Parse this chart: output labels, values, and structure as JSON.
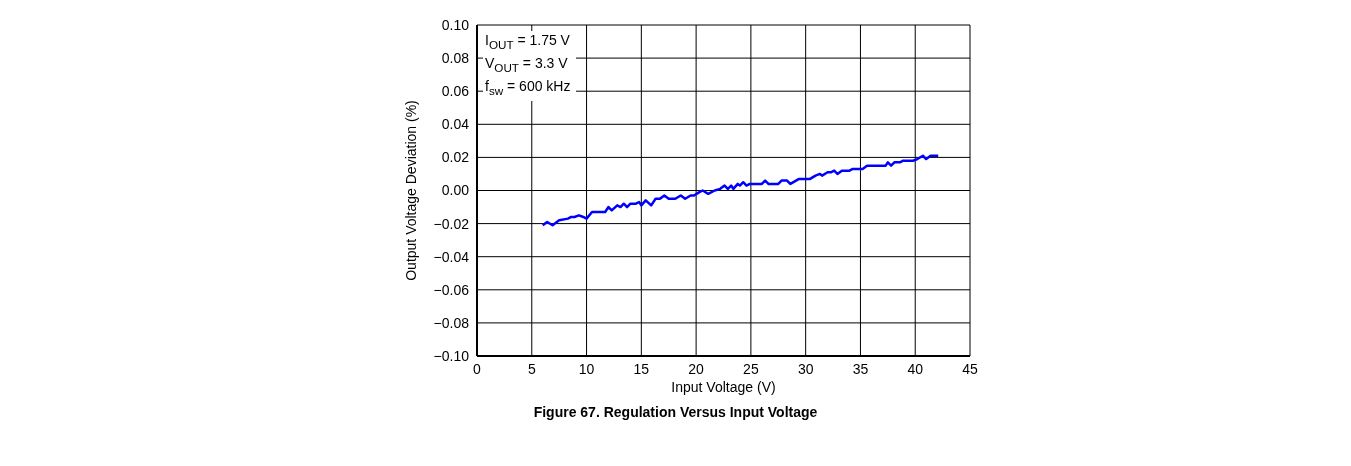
{
  "chart_data": {
    "type": "line",
    "title": "Figure 67. Regulation Versus Input Voltage",
    "xlabel": "Input Voltage (V)",
    "ylabel": "Output Voltage Deviation (%)",
    "annotations": [
      "I$_{OUT}$ = 1.75 V",
      "V$_{OUT}$ = 3.3 V",
      "f$_{sw}$ = 600 kHz"
    ],
    "xlim": [
      0,
      45
    ],
    "xticks": [
      0,
      5,
      10,
      15,
      20,
      25,
      30,
      35,
      40,
      45
    ],
    "ylim": [
      -0.1,
      0.1
    ],
    "yticks": [
      {
        "value": -0.1,
        "label": "−0.10"
      },
      {
        "value": -0.08,
        "label": "−0.08"
      },
      {
        "value": -0.06,
        "label": "−0.06"
      },
      {
        "value": -0.04,
        "label": "−0.04"
      },
      {
        "value": -0.02,
        "label": "−0.02"
      },
      {
        "value": 0,
        "label": "0.00"
      },
      {
        "value": 0.02,
        "label": "0.02"
      },
      {
        "value": 0.04,
        "label": "0.04"
      },
      {
        "value": 0.06,
        "label": "0.06"
      },
      {
        "value": 0.08,
        "label": "0.08"
      },
      {
        "value": 0.1,
        "label": "0.10"
      }
    ],
    "grid": true,
    "marker": "none",
    "line_style": "solid",
    "series": [
      {
        "color": "#0000ff",
        "x": [
          6.0,
          6.4,
          6.9,
          7.5,
          8.3,
          8.6,
          8.9,
          9.3,
          9.7,
          10.0,
          10.5,
          11.7,
          12.0,
          12.3,
          12.8,
          13.1,
          13.4,
          13.7,
          14.0,
          14.5,
          14.8,
          15.0,
          15.4,
          15.9,
          16.3,
          16.7,
          17.1,
          17.5,
          18.1,
          18.6,
          19.0,
          19.5,
          19.8,
          20.3,
          20.6,
          21.1,
          21.7,
          22.2,
          22.6,
          22.9,
          23.2,
          23.4,
          23.8,
          24.0,
          24.3,
          24.6,
          24.9,
          26.0,
          26.3,
          26.6,
          27.5,
          27.8,
          28.3,
          28.6,
          29.4,
          30.4,
          30.9,
          31.3,
          31.5,
          32.0,
          32.3,
          32.6,
          32.9,
          33.3,
          34.0,
          34.3,
          35.2,
          35.6,
          37.3,
          37.5,
          37.8,
          38.1,
          38.6,
          38.9,
          39.8,
          40.2,
          40.7,
          41.0,
          41.4,
          42.1
        ],
        "values": [
          -0.021,
          -0.019,
          -0.021,
          -0.018,
          -0.017,
          -0.016,
          -0.016,
          -0.015,
          -0.016,
          -0.017,
          -0.013,
          -0.013,
          -0.01,
          -0.012,
          -0.009,
          -0.01,
          -0.008,
          -0.01,
          -0.008,
          -0.008,
          -0.007,
          -0.009,
          -0.006,
          -0.009,
          -0.005,
          -0.005,
          -0.003,
          -0.005,
          -0.005,
          -0.003,
          -0.005,
          -0.003,
          -0.003,
          -0.001,
          0.0,
          -0.002,
          0.0,
          0.001,
          0.003,
          0.001,
          0.003,
          0.001,
          0.004,
          0.003,
          0.005,
          0.003,
          0.004,
          0.004,
          0.006,
          0.004,
          0.004,
          0.006,
          0.006,
          0.004,
          0.007,
          0.007,
          0.009,
          0.01,
          0.009,
          0.011,
          0.011,
          0.012,
          0.01,
          0.012,
          0.012,
          0.013,
          0.013,
          0.015,
          0.015,
          0.017,
          0.015,
          0.017,
          0.017,
          0.018,
          0.018,
          0.019,
          0.021,
          0.019,
          0.021,
          0.021
        ]
      }
    ]
  }
}
